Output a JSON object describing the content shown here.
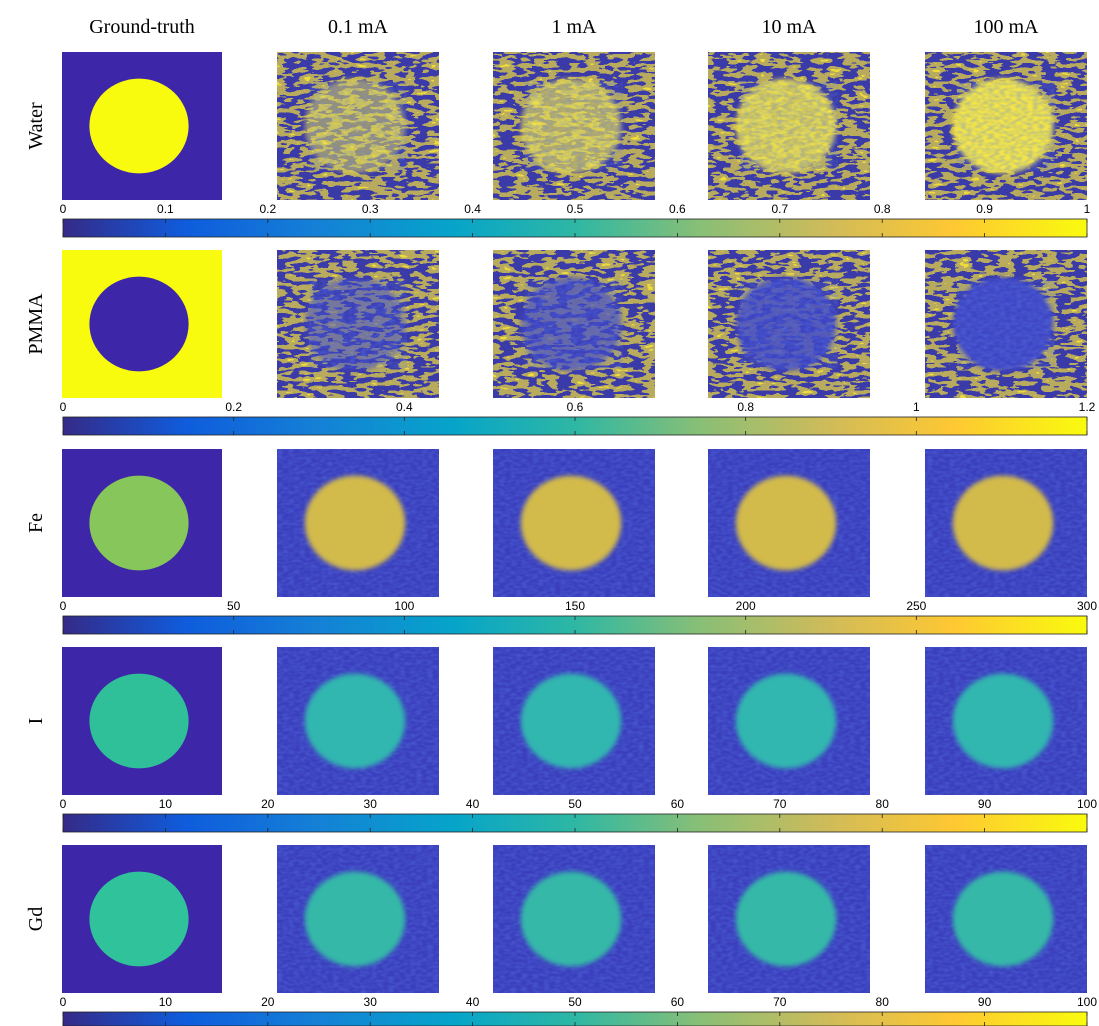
{
  "columns": [
    "Ground-truth",
    "0.1 mA",
    "1 mA",
    "10 mA",
    "100 mA"
  ],
  "rows": [
    {
      "label": "Water",
      "colorbar": {
        "lim": [
          0,
          1
        ],
        "ticks": [
          0,
          0.1,
          0.2,
          0.3,
          0.4,
          0.5,
          0.6,
          0.7,
          0.8,
          0.9,
          1
        ]
      }
    },
    {
      "label": "PMMA",
      "colorbar": {
        "lim": [
          0,
          1.2
        ],
        "ticks": [
          0,
          0.2,
          0.4,
          0.6,
          0.8,
          1,
          1.2
        ]
      }
    },
    {
      "label": "Fe",
      "colorbar": {
        "lim": [
          0,
          300
        ],
        "ticks": [
          0,
          50,
          100,
          150,
          200,
          250,
          300
        ]
      }
    },
    {
      "label": "I",
      "colorbar": {
        "lim": [
          0,
          100
        ],
        "ticks": [
          0,
          10,
          20,
          30,
          40,
          50,
          60,
          70,
          80,
          90,
          100
        ]
      }
    },
    {
      "label": "Gd",
      "colorbar": {
        "lim": [
          0,
          100
        ],
        "ticks": [
          0,
          10,
          20,
          30,
          40,
          50,
          60,
          70,
          80,
          90,
          100
        ]
      }
    }
  ]
}
